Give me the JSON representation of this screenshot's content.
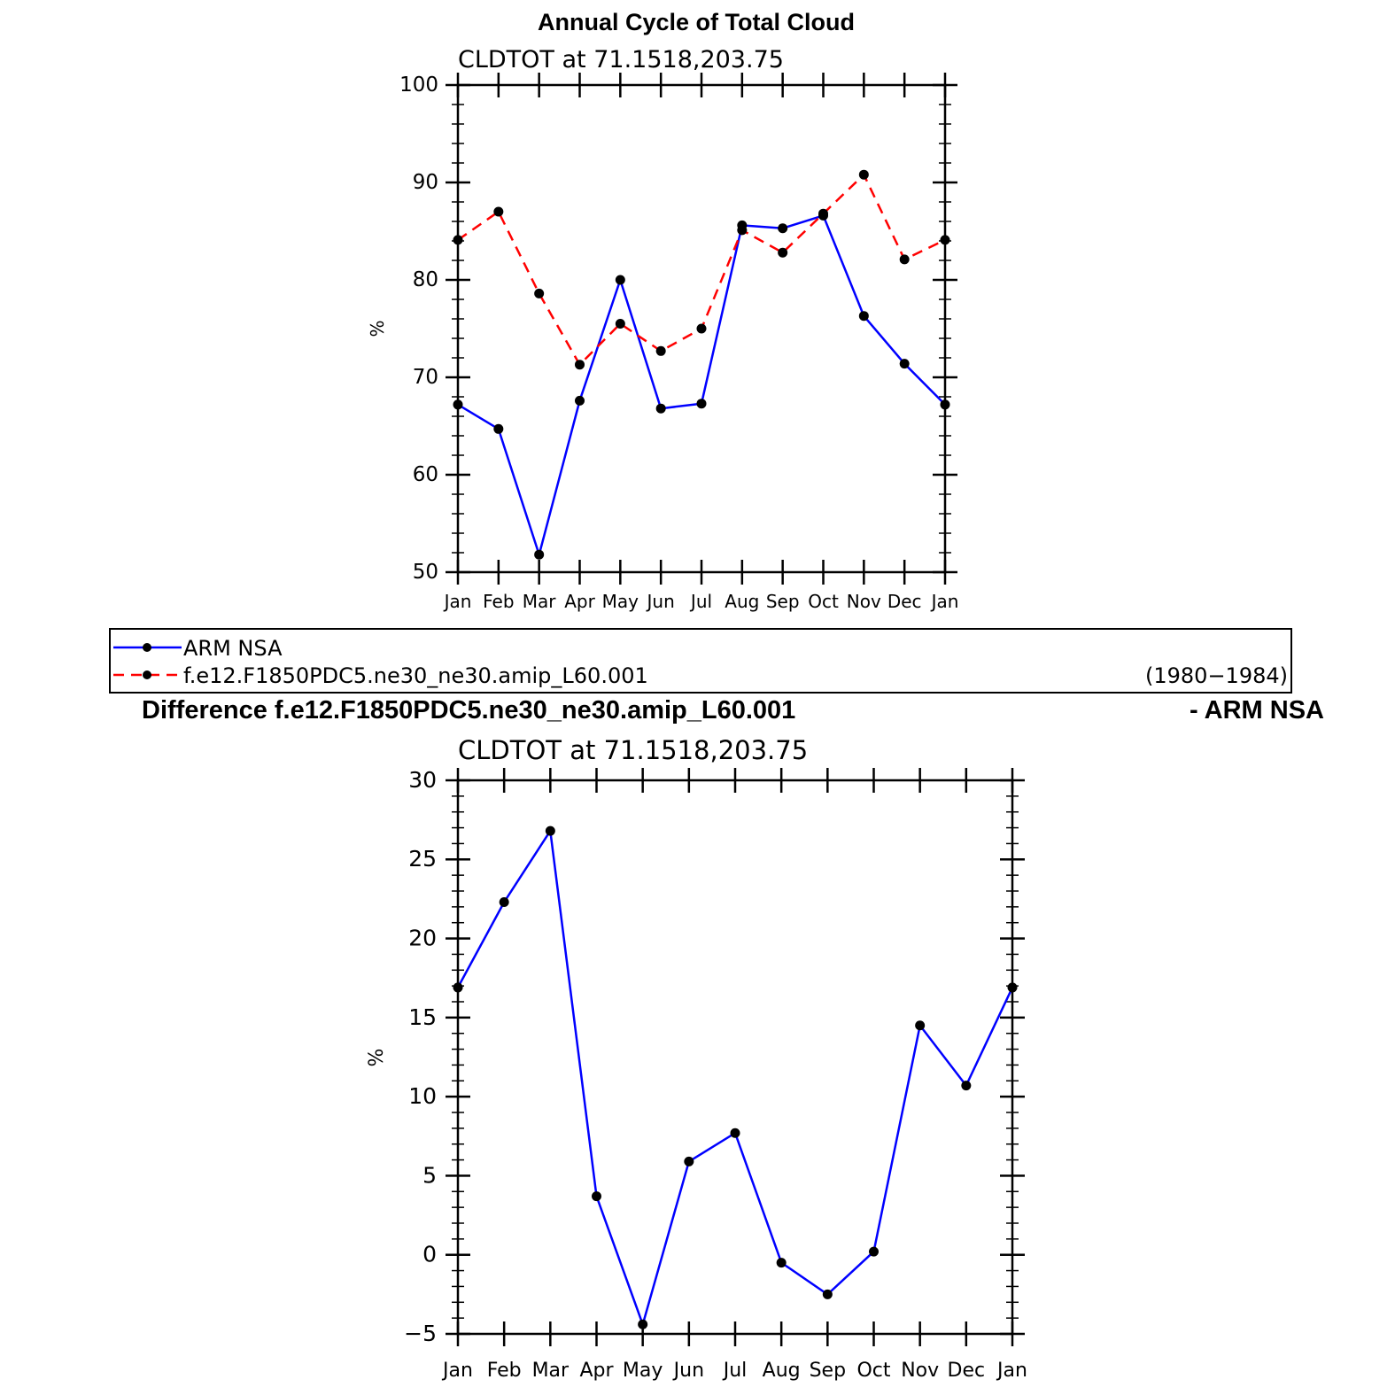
{
  "figure": {
    "top_title": "Annual Cycle of Total Cloud",
    "bottom_title_left": "Difference f.e12.F1850PDC5.ne30_ne30.amip_L60.001",
    "bottom_title_right": "- ARM NSA"
  },
  "legend": {
    "entries": [
      {
        "label": "ARM NSA",
        "color": "#0000ff",
        "dash": "solid"
      },
      {
        "label": "f.e12.F1850PDC5.ne30_ne30.amip_L60.001",
        "color": "#ff0000",
        "dash": "dashed"
      }
    ],
    "period": "(1980−1984)"
  },
  "chart_data": [
    {
      "type": "line",
      "title": "CLDTOT at 71.1518,203.75",
      "ylabel": "%",
      "categories": [
        "Jan",
        "Feb",
        "Mar",
        "Apr",
        "May",
        "Jun",
        "Jul",
        "Aug",
        "Sep",
        "Oct",
        "Nov",
        "Dec",
        "Jan"
      ],
      "ylim": [
        50,
        100
      ],
      "yticks": [
        50,
        60,
        70,
        80,
        90,
        100
      ],
      "series": [
        {
          "name": "ARM NSA",
          "color": "#0000ff",
          "dash": "solid",
          "values": [
            67.2,
            64.7,
            51.8,
            67.6,
            80.0,
            66.8,
            67.3,
            85.6,
            85.3,
            86.6,
            76.3,
            71.4,
            67.2
          ]
        },
        {
          "name": "f.e12.F1850PDC5.ne30_ne30.amip_L60.001",
          "color": "#ff0000",
          "dash": "dashed",
          "values": [
            84.1,
            87.0,
            78.6,
            71.3,
            75.5,
            72.7,
            75.0,
            85.1,
            82.8,
            86.8,
            90.8,
            82.1,
            84.1
          ]
        }
      ]
    },
    {
      "type": "line",
      "title": "CLDTOT at 71.1518,203.75",
      "ylabel": "%",
      "categories": [
        "Jan",
        "Feb",
        "Mar",
        "Apr",
        "May",
        "Jun",
        "Jul",
        "Aug",
        "Sep",
        "Oct",
        "Nov",
        "Dec",
        "Jan"
      ],
      "ylim": [
        -5,
        30
      ],
      "yticks": [
        -5,
        0,
        5,
        10,
        15,
        20,
        25,
        30
      ],
      "series": [
        {
          "color": "#0000ff",
          "dash": "solid",
          "values": [
            16.9,
            22.3,
            26.8,
            3.7,
            -4.4,
            5.9,
            7.7,
            -0.5,
            -2.5,
            0.2,
            14.5,
            10.7,
            16.9
          ]
        }
      ]
    }
  ]
}
